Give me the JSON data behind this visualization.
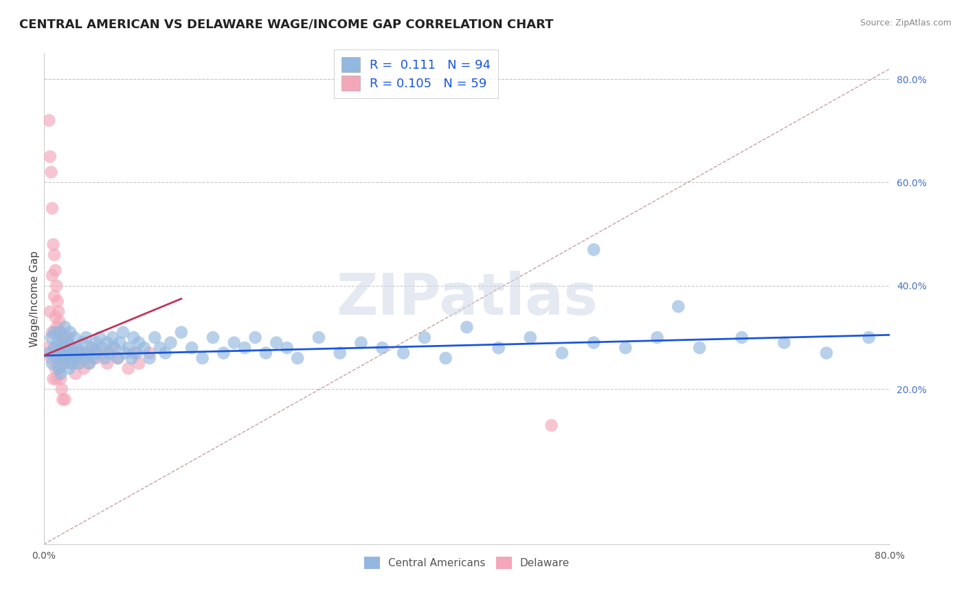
{
  "title": "CENTRAL AMERICAN VS DELAWARE WAGE/INCOME GAP CORRELATION CHART",
  "source": "Source: ZipAtlas.com",
  "ylabel": "Wage/Income Gap",
  "xlim": [
    0.0,
    0.8
  ],
  "ylim": [
    -0.1,
    0.85
  ],
  "ytick_labels_right": [
    "20.0%",
    "40.0%",
    "60.0%",
    "80.0%"
  ],
  "ytick_vals_right": [
    0.2,
    0.4,
    0.6,
    0.8
  ],
  "blue_color": "#92b8e0",
  "pink_color": "#f4a7b9",
  "blue_line_color": "#1a56db",
  "pink_line_color": "#c0345a",
  "ref_line_color": "#c8a0a0",
  "grid_color": "#c8c8c8",
  "R_blue": 0.111,
  "N_blue": 94,
  "R_pink": 0.105,
  "N_pink": 59,
  "legend_label_blue": "Central Americans",
  "legend_label_pink": "Delaware",
  "watermark": "ZIPatlas",
  "background_color": "#ffffff",
  "blue_line_x0": 0.0,
  "blue_line_y0": 0.265,
  "blue_line_x1": 0.8,
  "blue_line_y1": 0.305,
  "pink_line_x0": 0.0,
  "pink_line_y0": 0.265,
  "pink_line_x1": 0.13,
  "pink_line_y1": 0.375,
  "blue_scatter_x": [
    0.005,
    0.007,
    0.008,
    0.01,
    0.01,
    0.012,
    0.013,
    0.014,
    0.015,
    0.015,
    0.016,
    0.017,
    0.018,
    0.018,
    0.019,
    0.02,
    0.02,
    0.022,
    0.023,
    0.024,
    0.025,
    0.025,
    0.026,
    0.027,
    0.028,
    0.029,
    0.03,
    0.032,
    0.033,
    0.035,
    0.037,
    0.038,
    0.04,
    0.042,
    0.043,
    0.045,
    0.047,
    0.049,
    0.05,
    0.053,
    0.055,
    0.058,
    0.06,
    0.062,
    0.065,
    0.067,
    0.07,
    0.072,
    0.075,
    0.077,
    0.08,
    0.083,
    0.085,
    0.088,
    0.09,
    0.095,
    0.1,
    0.105,
    0.11,
    0.115,
    0.12,
    0.13,
    0.14,
    0.15,
    0.16,
    0.17,
    0.18,
    0.19,
    0.2,
    0.21,
    0.22,
    0.23,
    0.24,
    0.26,
    0.28,
    0.3,
    0.32,
    0.34,
    0.36,
    0.38,
    0.4,
    0.43,
    0.46,
    0.49,
    0.52,
    0.55,
    0.58,
    0.62,
    0.66,
    0.7,
    0.74,
    0.78,
    0.52,
    0.6
  ],
  "blue_scatter_y": [
    0.27,
    0.3,
    0.25,
    0.28,
    0.31,
    0.26,
    0.29,
    0.24,
    0.31,
    0.27,
    0.23,
    0.28,
    0.25,
    0.3,
    0.26,
    0.32,
    0.28,
    0.27,
    0.29,
    0.24,
    0.26,
    0.31,
    0.28,
    0.25,
    0.27,
    0.3,
    0.26,
    0.28,
    0.25,
    0.27,
    0.29,
    0.26,
    0.3,
    0.27,
    0.25,
    0.28,
    0.26,
    0.29,
    0.27,
    0.3,
    0.28,
    0.26,
    0.29,
    0.27,
    0.3,
    0.28,
    0.26,
    0.29,
    0.31,
    0.27,
    0.28,
    0.26,
    0.3,
    0.27,
    0.29,
    0.28,
    0.26,
    0.3,
    0.28,
    0.27,
    0.29,
    0.31,
    0.28,
    0.26,
    0.3,
    0.27,
    0.29,
    0.28,
    0.3,
    0.27,
    0.29,
    0.28,
    0.26,
    0.3,
    0.27,
    0.29,
    0.28,
    0.27,
    0.3,
    0.26,
    0.32,
    0.28,
    0.3,
    0.27,
    0.29,
    0.28,
    0.3,
    0.28,
    0.3,
    0.29,
    0.27,
    0.3,
    0.47,
    0.36
  ],
  "pink_scatter_x": [
    0.004,
    0.005,
    0.006,
    0.006,
    0.007,
    0.007,
    0.008,
    0.008,
    0.008,
    0.009,
    0.009,
    0.01,
    0.01,
    0.01,
    0.011,
    0.011,
    0.011,
    0.012,
    0.012,
    0.012,
    0.013,
    0.013,
    0.014,
    0.014,
    0.015,
    0.015,
    0.016,
    0.016,
    0.017,
    0.017,
    0.018,
    0.018,
    0.019,
    0.02,
    0.02,
    0.021,
    0.022,
    0.023,
    0.024,
    0.025,
    0.026,
    0.028,
    0.03,
    0.032,
    0.034,
    0.038,
    0.04,
    0.043,
    0.047,
    0.05,
    0.055,
    0.06,
    0.065,
    0.07,
    0.08,
    0.085,
    0.09,
    0.1,
    0.48
  ],
  "pink_scatter_y": [
    0.28,
    0.72,
    0.65,
    0.35,
    0.62,
    0.26,
    0.55,
    0.42,
    0.31,
    0.48,
    0.22,
    0.46,
    0.38,
    0.28,
    0.43,
    0.34,
    0.24,
    0.4,
    0.32,
    0.22,
    0.37,
    0.28,
    0.35,
    0.26,
    0.33,
    0.24,
    0.31,
    0.22,
    0.3,
    0.2,
    0.29,
    0.18,
    0.26,
    0.3,
    0.18,
    0.26,
    0.28,
    0.3,
    0.27,
    0.25,
    0.28,
    0.26,
    0.23,
    0.27,
    0.25,
    0.24,
    0.27,
    0.25,
    0.28,
    0.26,
    0.27,
    0.25,
    0.28,
    0.26,
    0.24,
    0.27,
    0.25,
    0.27,
    0.13
  ]
}
